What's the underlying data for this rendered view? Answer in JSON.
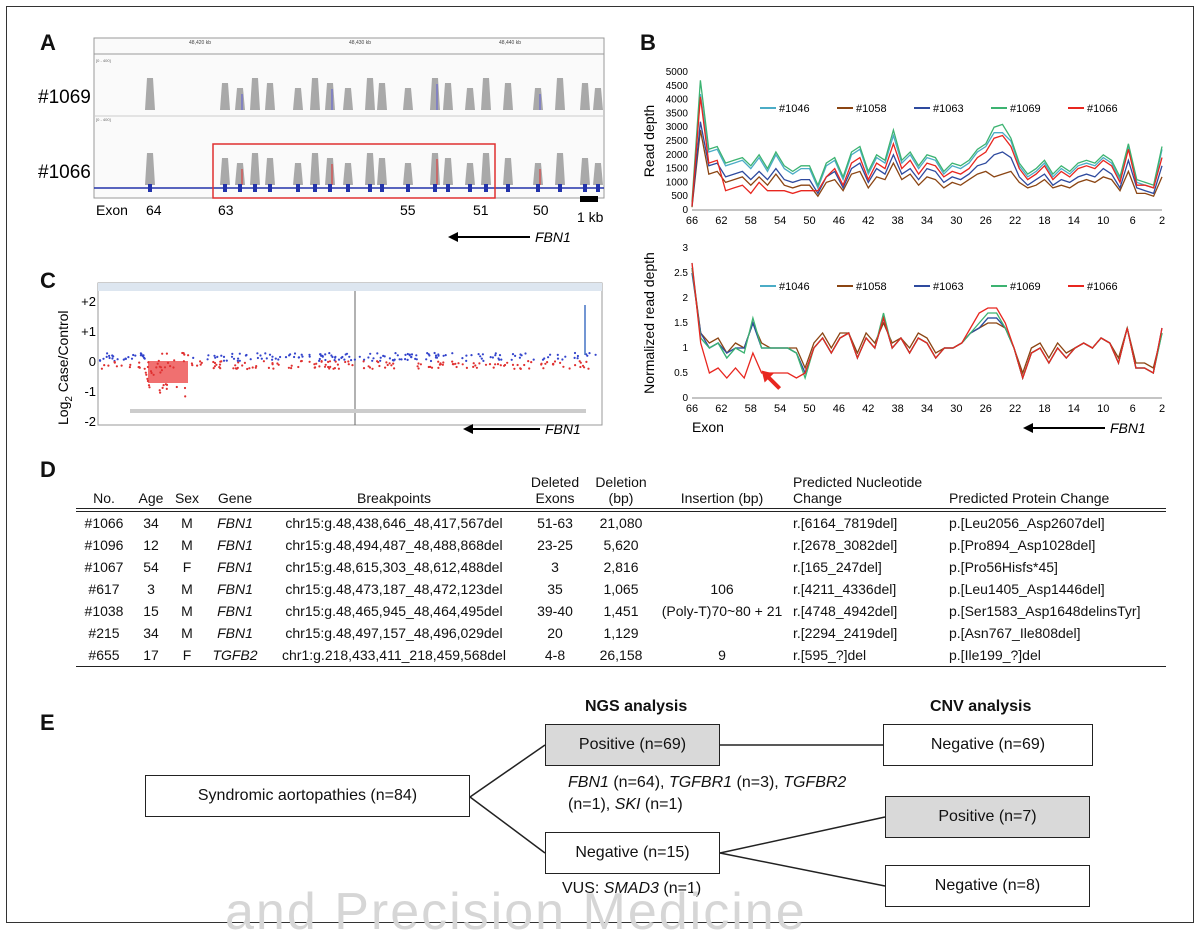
{
  "panels": {
    "a": "A",
    "b": "B",
    "c": "C",
    "d": "D",
    "e": "E"
  },
  "panel_a": {
    "samples": [
      "#1069",
      "#1066"
    ],
    "ruler": [
      "48,420 kb",
      "48,430 kb",
      "48,440 kb"
    ],
    "track_scale": "[0 - 400]",
    "exon_word": "Exon",
    "exons": [
      "64",
      "63",
      "55",
      "51",
      "50"
    ],
    "scale_bar": "1 kb",
    "gene": "FBN1"
  },
  "panel_c": {
    "ylabel_main": "Log",
    "ylabel_sub": "2",
    "ylabel_rest": " Case/Control",
    "yticks": [
      "+2",
      "+1",
      "0",
      "-1",
      "-2"
    ],
    "gene": "FBN1"
  },
  "chart_data": [
    {
      "type": "line",
      "title": "",
      "xlabel": "",
      "ylabel": "Read depth",
      "ylim": [
        0,
        5000
      ],
      "yticks": [
        "0",
        "500",
        "1000",
        "1500",
        "2000",
        "2500",
        "3000",
        "3500",
        "4000",
        "4500",
        "5000"
      ],
      "xticks": [
        "66",
        "62",
        "58",
        "54",
        "50",
        "46",
        "42",
        "38",
        "34",
        "30",
        "26",
        "22",
        "18",
        "14",
        "10",
        "6",
        "2"
      ],
      "legend": [
        "#1046",
        "#1058",
        "#1063",
        "#1069",
        "#1066"
      ],
      "colors": [
        "#4bacc6",
        "#8b4513",
        "#2e4a9e",
        "#3cb371",
        "#e8261f"
      ],
      "series": [
        {
          "name": "#1046",
          "values": [
            200,
            4200,
            2100,
            2200,
            1600,
            1700,
            1800,
            1500,
            1900,
            1400,
            2000,
            1500,
            1300,
            1500,
            1500,
            800,
            1600,
            1800,
            1100,
            2000,
            2200,
            1300,
            1900,
            1700,
            2700,
            1700,
            2000,
            1500,
            1900,
            1800,
            1300,
            1600,
            1500,
            1700,
            2100,
            2300,
            2800,
            2800,
            2500,
            1600,
            1200,
            1400,
            1700,
            1200,
            1500,
            1300,
            1600,
            1700,
            1600,
            1900,
            1700,
            1100,
            2300,
            1000,
            900,
            800,
            2200
          ]
        },
        {
          "name": "#1058",
          "values": [
            100,
            2900,
            1300,
            1400,
            1000,
            1100,
            1200,
            900,
            1200,
            900,
            1300,
            900,
            800,
            900,
            900,
            500,
            1000,
            1100,
            700,
            1300,
            1400,
            800,
            1200,
            1100,
            1700,
            1100,
            1300,
            900,
            1200,
            1100,
            800,
            1000,
            900,
            1100,
            1300,
            1400,
            1200,
            1300,
            1400,
            1000,
            800,
            900,
            1100,
            800,
            900,
            800,
            1000,
            1100,
            1000,
            1200,
            1100,
            700,
            1400,
            600,
            600,
            500,
            1200
          ]
        },
        {
          "name": "#1063",
          "values": [
            150,
            3200,
            1600,
            1700,
            1200,
            1300,
            1400,
            1100,
            1400,
            1100,
            1500,
            1100,
            1000,
            1100,
            1100,
            600,
            1200,
            1400,
            800,
            1500,
            1700,
            1000,
            1500,
            1300,
            2000,
            1300,
            1500,
            1100,
            1500,
            1400,
            1000,
            1200,
            1100,
            1300,
            1600,
            1700,
            2000,
            2100,
            1900,
            1200,
            900,
            1100,
            1300,
            900,
            1100,
            1000,
            1200,
            1300,
            1200,
            1500,
            1300,
            800,
            1800,
            800,
            700,
            600,
            1600
          ]
        },
        {
          "name": "#1069",
          "values": [
            300,
            4700,
            2200,
            2300,
            1700,
            1800,
            1900,
            1600,
            2000,
            1500,
            2100,
            1600,
            1400,
            1600,
            1600,
            900,
            1700,
            1900,
            1200,
            2100,
            2300,
            1400,
            2000,
            1800,
            2900,
            1800,
            2100,
            1600,
            2000,
            1900,
            1400,
            1700,
            1600,
            1800,
            2200,
            2400,
            3000,
            3100,
            2600,
            1700,
            1300,
            1500,
            1800,
            1300,
            1600,
            1400,
            1700,
            1800,
            1700,
            2000,
            1800,
            1200,
            2400,
            1100,
            1000,
            900,
            2300
          ]
        },
        {
          "name": "#1066",
          "values": [
            150,
            4100,
            1700,
            1800,
            700,
            800,
            900,
            600,
            1000,
            700,
            700,
            700,
            600,
            700,
            700,
            700,
            1200,
            1500,
            900,
            1700,
            1900,
            1100,
            1700,
            1500,
            2400,
            1500,
            1800,
            1300,
            1700,
            1600,
            1200,
            1400,
            1300,
            1500,
            1900,
            2100,
            2600,
            2700,
            2300,
            1500,
            1100,
            1300,
            1600,
            1100,
            1400,
            1200,
            1500,
            1600,
            1500,
            1800,
            1600,
            1000,
            2200,
            900,
            900,
            800,
            1900
          ]
        }
      ]
    },
    {
      "type": "line",
      "title": "",
      "xlabel": "Exon",
      "ylabel": "Normalized read depth",
      "ylim": [
        0,
        3
      ],
      "yticks": [
        "0",
        "0.5",
        "1",
        "1.5",
        "2",
        "2.5",
        "3"
      ],
      "xticks": [
        "66",
        "62",
        "58",
        "54",
        "50",
        "46",
        "42",
        "38",
        "34",
        "30",
        "26",
        "22",
        "18",
        "14",
        "10",
        "6",
        "2"
      ],
      "legend": [
        "#1046",
        "#1058",
        "#1063",
        "#1069",
        "#1066"
      ],
      "colors": [
        "#4bacc6",
        "#8b4513",
        "#2e4a9e",
        "#3cb371",
        "#e8261f"
      ],
      "annotation": "arrow at exon 58",
      "gene": "FBN1",
      "series": [
        {
          "name": "#1046",
          "values": [
            2.7,
            1.2,
            1.0,
            1.1,
            0.8,
            1.0,
            1.0,
            1.5,
            1.0,
            1.0,
            1.0,
            1.0,
            0.9,
            0.5,
            1.0,
            1.2,
            0.9,
            1.2,
            1.3,
            0.8,
            1.2,
            1.0,
            1.6,
            1.0,
            1.2,
            0.9,
            1.2,
            1.1,
            0.8,
            1.0,
            1.0,
            1.1,
            1.3,
            1.4,
            1.6,
            1.6,
            1.4,
            1.0,
            0.4,
            0.9,
            1.0,
            0.7,
            1.0,
            0.8,
            1.0,
            1.1,
            1.0,
            1.2,
            1.1,
            0.7,
            1.4,
            0.6,
            0.6,
            0.5,
            1.3
          ]
        },
        {
          "name": "#1058",
          "values": [
            2.6,
            1.3,
            1.1,
            1.2,
            0.9,
            1.1,
            1.0,
            1.5,
            1.1,
            1.0,
            1.0,
            1.0,
            1.0,
            0.6,
            1.1,
            1.3,
            1.0,
            1.3,
            1.3,
            0.9,
            1.3,
            1.1,
            1.5,
            1.1,
            1.2,
            1.0,
            1.3,
            1.2,
            0.9,
            1.0,
            1.0,
            1.1,
            1.3,
            1.4,
            1.5,
            1.5,
            1.4,
            1.0,
            0.5,
            1.0,
            1.1,
            0.8,
            1.1,
            0.9,
            1.0,
            1.1,
            1.0,
            1.2,
            1.1,
            0.8,
            1.4,
            0.7,
            0.7,
            0.6,
            1.3
          ]
        },
        {
          "name": "#1063",
          "values": [
            2.5,
            1.3,
            1.0,
            1.1,
            0.9,
            1.0,
            1.0,
            1.5,
            1.0,
            1.0,
            1.0,
            1.0,
            0.9,
            0.5,
            1.0,
            1.2,
            0.9,
            1.2,
            1.3,
            0.8,
            1.2,
            1.0,
            1.6,
            1.0,
            1.2,
            0.9,
            1.2,
            1.1,
            0.8,
            1.0,
            1.0,
            1.1,
            1.3,
            1.4,
            1.6,
            1.6,
            1.4,
            1.0,
            0.4,
            0.9,
            1.0,
            0.7,
            1.0,
            0.8,
            1.0,
            1.1,
            1.0,
            1.2,
            1.1,
            0.7,
            1.4,
            0.6,
            0.6,
            0.5,
            1.4
          ]
        },
        {
          "name": "#1069",
          "values": [
            2.6,
            1.2,
            1.0,
            1.1,
            0.8,
            1.0,
            0.9,
            1.6,
            1.0,
            1.0,
            1.0,
            1.0,
            0.9,
            0.4,
            1.0,
            1.2,
            0.9,
            1.2,
            1.3,
            0.8,
            1.2,
            1.0,
            1.7,
            1.0,
            1.2,
            0.9,
            1.2,
            1.1,
            0.8,
            1.0,
            1.0,
            1.1,
            1.3,
            1.5,
            1.7,
            1.7,
            1.4,
            1.0,
            0.4,
            0.9,
            1.0,
            0.7,
            1.0,
            0.8,
            1.0,
            1.1,
            1.0,
            1.2,
            1.1,
            0.7,
            1.4,
            0.6,
            0.6,
            0.5,
            1.3
          ]
        },
        {
          "name": "#1066",
          "values": [
            2.7,
            1.1,
            0.5,
            0.6,
            0.4,
            0.6,
            0.4,
            0.9,
            0.5,
            0.5,
            0.5,
            0.5,
            0.4,
            0.5,
            1.0,
            1.2,
            0.9,
            1.2,
            1.3,
            0.8,
            1.2,
            1.0,
            1.6,
            1.0,
            1.2,
            0.9,
            1.2,
            1.1,
            0.8,
            1.0,
            1.0,
            1.1,
            1.4,
            1.7,
            1.8,
            1.8,
            1.5,
            1.0,
            0.4,
            0.9,
            1.0,
            0.7,
            1.0,
            0.8,
            1.0,
            1.1,
            1.0,
            1.2,
            1.1,
            0.7,
            1.4,
            0.6,
            0.6,
            0.5,
            1.4
          ]
        }
      ]
    }
  ],
  "table": {
    "headers": [
      "No.",
      "Age",
      "Sex",
      "Gene",
      "Breakpoints",
      "Deleted Exons",
      "Deletion (bp)",
      "Insertion (bp)",
      "Predicted Nucleotide Change",
      "Predicted Protein Change"
    ],
    "rows": [
      [
        "#1066",
        "34",
        "M",
        "FBN1",
        "chr15:g.48,438,646_48,417,567del",
        "51-63",
        "21,080",
        "",
        "r.[6164_7819del]",
        "p.[Leu2056_Asp2607del]"
      ],
      [
        "#1096",
        "12",
        "M",
        "FBN1",
        "chr15:g.48,494,487_48,488,868del",
        "23-25",
        "5,620",
        "",
        "r.[2678_3082del]",
        "p.[Pro894_Asp1028del]"
      ],
      [
        "#1067",
        "54",
        "F",
        "FBN1",
        "chr15:g.48,615,303_48,612,488del",
        "3",
        "2,816",
        "",
        "r.[165_247del]",
        "p.[Pro56Hisfs*45]"
      ],
      [
        "#617",
        "3",
        "M",
        "FBN1",
        "chr15:g.48,473,187_48,472,123del",
        "35",
        "1,065",
        "106",
        "r.[4211_4336del]",
        "p.[Leu1405_Asp1446del]"
      ],
      [
        "#1038",
        "15",
        "M",
        "FBN1",
        "chr15:g.48,465,945_48,464,495del",
        "39-40",
        "1,451",
        "(Poly-T)70~80 + 21",
        "r.[4748_4942del]",
        "p.[Ser1583_Asp1648delinsTyr]"
      ],
      [
        "#215",
        "34",
        "M",
        "FBN1",
        "chr15:g.48,497,157_48,496,029del",
        "20",
        "1,129",
        "",
        "r.[2294_2419del]",
        "p.[Asn767_Ile808del]"
      ],
      [
        "#655",
        "17",
        "F",
        "TGFB2",
        "chr1:g.218,433,411_218,459,568del",
        "4-8",
        "26,158",
        "9",
        "r.[595_?]del",
        "p.[Ile199_?]del"
      ]
    ]
  },
  "flow": {
    "ngs_header": "NGS analysis",
    "cnv_header": "CNV analysis",
    "root": "Syndromic aortopathies (n=84)",
    "ngs_positive": "Positive (n=69)",
    "ngs_negative": "Negative (n=15)",
    "cnv_negative_top": "Negative (n=69)",
    "cnv_positive": "Positive (n=7)",
    "cnv_negative_bottom": "Negative (n=8)",
    "genes_line1": {
      "g1": "FBN1",
      "t1": " (n=64), ",
      "g2": "TGFBR1",
      "t2": " (n=3), ",
      "g3": "TGFBR2"
    },
    "genes_line2": {
      "t1": "(n=1), ",
      "g1": "SKI",
      "t2": " (n=1)"
    },
    "vus": {
      "t1": "VUS: ",
      "g1": "SMAD3",
      "t2": " (n=1)"
    }
  },
  "watermark": "and Precision Medicine"
}
